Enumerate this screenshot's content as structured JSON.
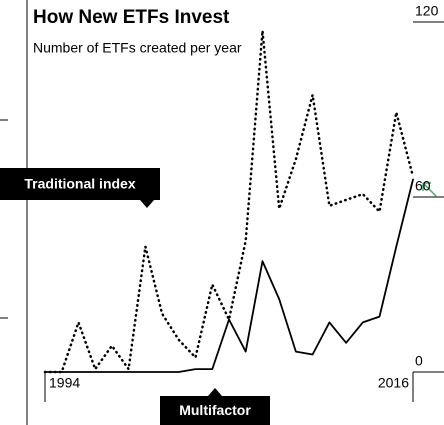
{
  "chart_data": {
    "type": "line",
    "title": "How New ETFs Invest",
    "subtitle": "Number of ETFs created per year",
    "x": [
      1994,
      1995,
      1996,
      1997,
      1998,
      1999,
      2000,
      2001,
      2002,
      2003,
      2004,
      2005,
      2006,
      2007,
      2008,
      2009,
      2010,
      2011,
      2012,
      2013,
      2014,
      2015,
      2016
    ],
    "xlim": [
      1994,
      2016
    ],
    "xticks": [
      1994,
      2016
    ],
    "ylim": [
      0,
      120
    ],
    "yticks": [
      0,
      60,
      120
    ],
    "series": [
      {
        "name": "Traditional index",
        "color": "#000000",
        "dash": true,
        "values": [
          0,
          0,
          17,
          1,
          9,
          1,
          43,
          20,
          11,
          5,
          30,
          18,
          45,
          117,
          56,
          73,
          95,
          57,
          59,
          61,
          55,
          89,
          67
        ]
      },
      {
        "name": "Multifactor",
        "color": "#000000",
        "dash": false,
        "values": [
          0,
          0,
          0,
          0,
          0,
          0,
          0,
          0,
          0,
          1,
          1,
          18,
          7,
          38,
          25,
          7,
          6,
          17,
          10,
          17,
          19,
          43,
          66
        ]
      }
    ]
  }
}
